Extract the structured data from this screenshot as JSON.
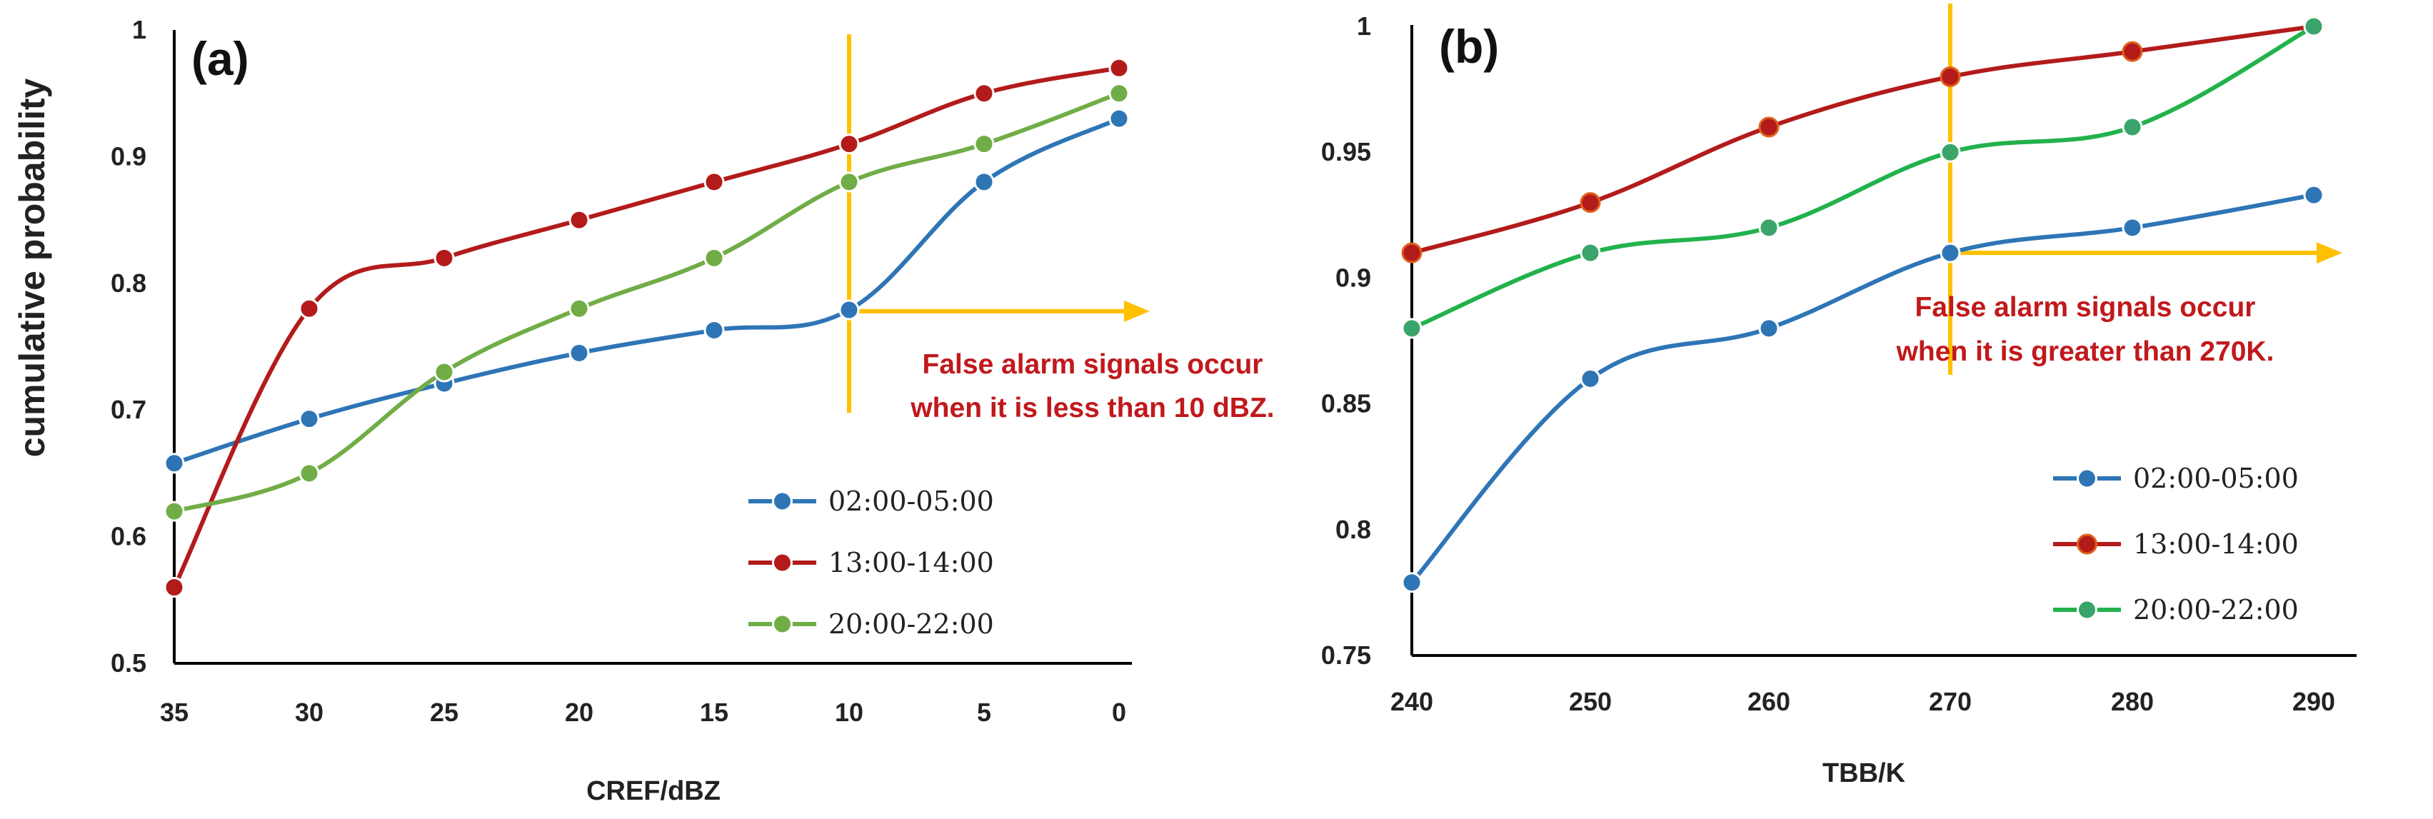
{
  "colors": {
    "series_blue": "#2e75b6",
    "series_red": "#b31b1b",
    "series_green_a": "#70ad47",
    "series_green_b": "#22b24c",
    "marker_green_b": "#3aa46a",
    "marker_ring_b": "#e0601c",
    "threshold": "#ffc000",
    "annotation": "#c0191c",
    "axis": "#000000"
  },
  "chart_data": [
    {
      "type": "line",
      "panel_label": "(a)",
      "xlabel": "CREF/dBZ",
      "ylabel": "cumulative probability",
      "x": [
        35,
        30,
        25,
        20,
        15,
        10,
        5,
        0
      ],
      "x_tick_labels": [
        "35",
        "30",
        "25",
        "20",
        "15",
        "10",
        "5",
        "0"
      ],
      "x_reversed": true,
      "ylim": [
        0.5,
        1
      ],
      "y_tick_labels": [
        "0.5",
        "0.6",
        "0.7",
        "0.8",
        "0.9",
        "1"
      ],
      "smooth": true,
      "series": [
        {
          "name": "02:00-05:00",
          "values": [
            0.658,
            0.693,
            0.721,
            0.745,
            0.763,
            0.779,
            0.88,
            0.93
          ]
        },
        {
          "name": "13:00-14:00",
          "values": [
            0.56,
            0.78,
            0.82,
            0.85,
            0.88,
            0.91,
            0.95,
            0.97
          ]
        },
        {
          "name": "20:00-22:00",
          "values": [
            0.62,
            0.65,
            0.73,
            0.78,
            0.82,
            0.88,
            0.91,
            0.95
          ]
        }
      ],
      "threshold": {
        "x": 10,
        "arrow_y": 0.778,
        "direction": "toward 0 dBZ"
      },
      "annotation": [
        "False alarm signals occur",
        "when it is less than 10 dBZ."
      ],
      "legend_position": "center-right",
      "grid": false
    },
    {
      "type": "line",
      "panel_label": "(b)",
      "xlabel": "TBB/K",
      "ylabel": "",
      "x": [
        240,
        250,
        260,
        270,
        280,
        290
      ],
      "x_tick_labels": [
        "240",
        "250",
        "260",
        "270",
        "280",
        "290"
      ],
      "x_reversed": false,
      "ylim": [
        0.75,
        1
      ],
      "y_tick_labels": [
        "0.75",
        "0.8",
        "0.85",
        "0.9",
        "0.95",
        "1"
      ],
      "smooth": true,
      "series": [
        {
          "name": "02:00-05:00",
          "values": [
            0.779,
            0.86,
            0.88,
            0.91,
            0.92,
            0.933
          ]
        },
        {
          "name": "13:00-14:00",
          "values": [
            0.91,
            0.93,
            0.96,
            0.98,
            0.99,
            1.0
          ]
        },
        {
          "name": "20:00-22:00",
          "values": [
            0.88,
            0.91,
            0.92,
            0.95,
            0.96,
            1.0
          ]
        }
      ],
      "threshold": {
        "x": 270,
        "arrow_y": 0.91,
        "direction": "toward 290 K"
      },
      "annotation": [
        "False alarm signals occur",
        "when it is greater  than 270K."
      ],
      "legend_position": "bottom-right",
      "grid": false
    }
  ]
}
